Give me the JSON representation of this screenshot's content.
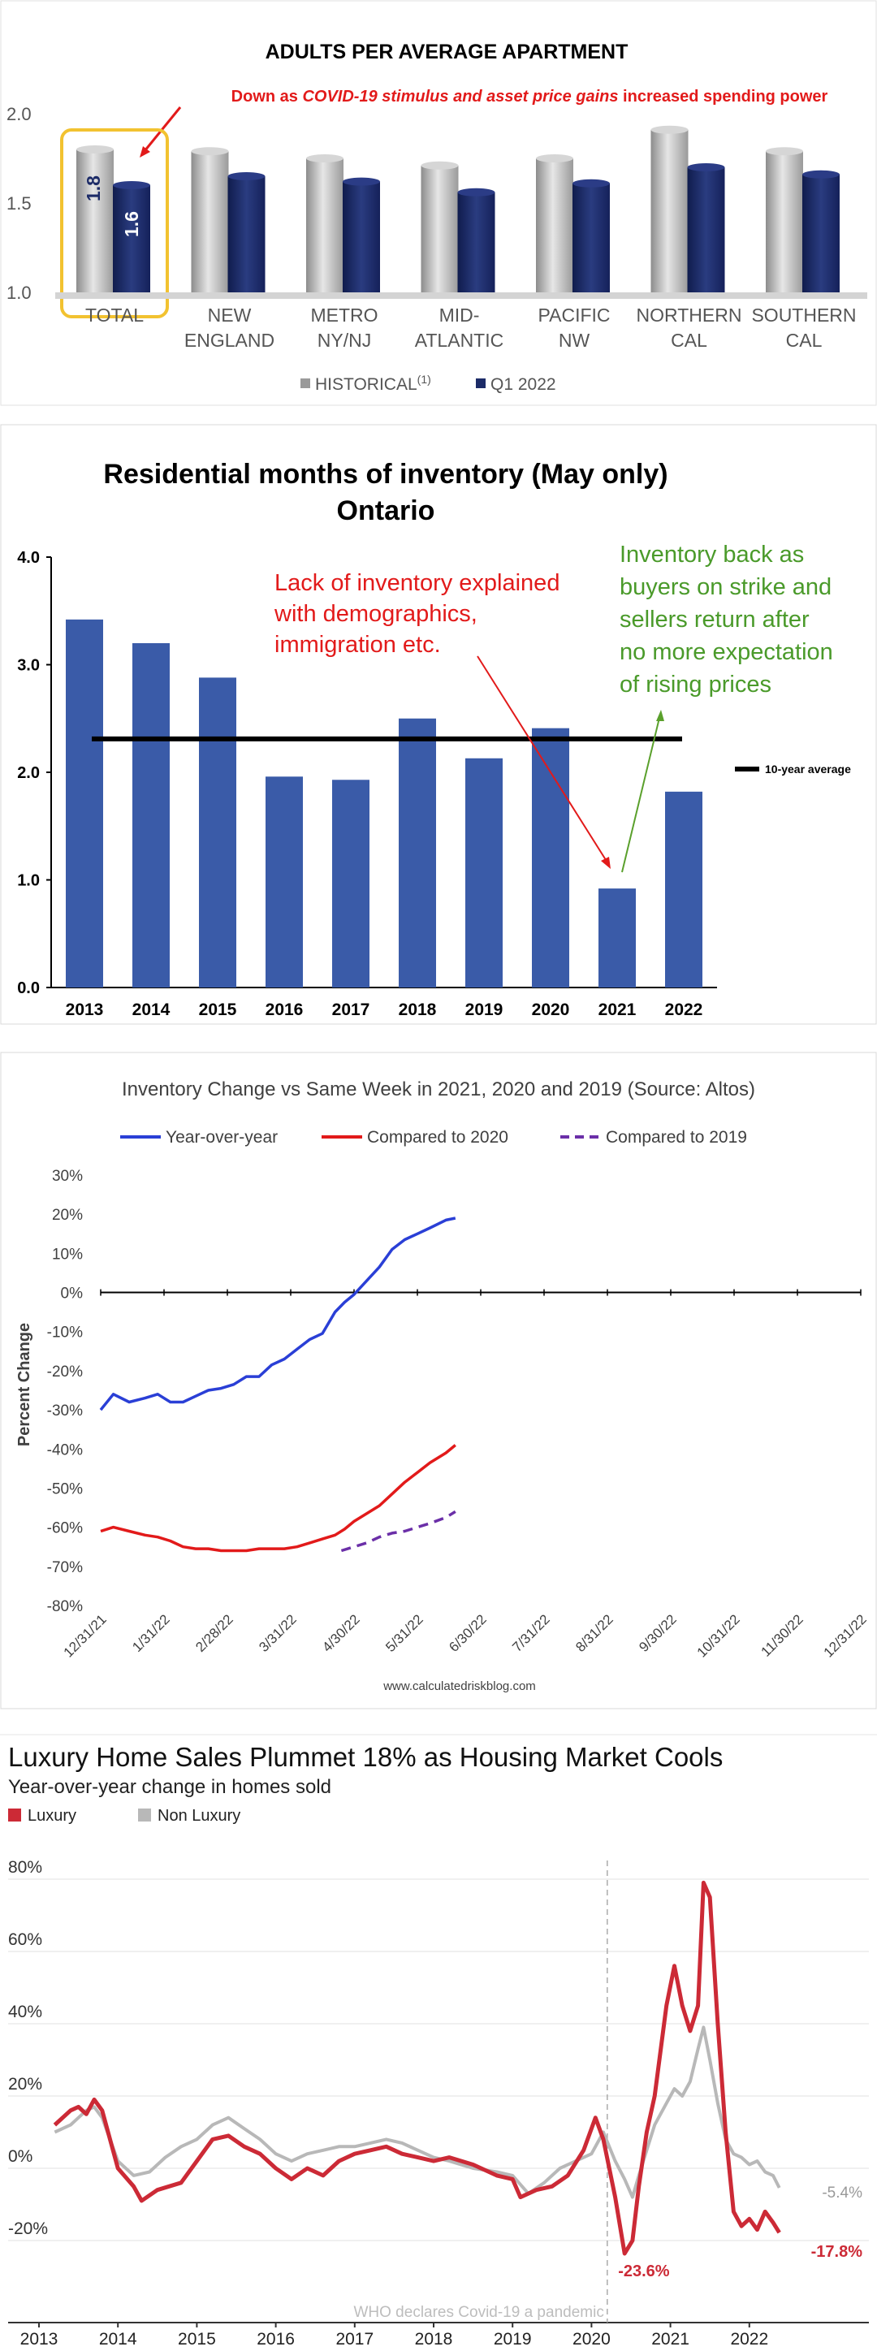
{
  "apartment": {
    "chart_data": {
      "type": "bar",
      "title": "ADULTS PER AVERAGE APARTMENT",
      "annotation": {
        "prefix": "Down as ",
        "emphasis": "COVID-19 stimulus and asset price gains",
        "suffix": " increased spending power"
      },
      "categories": [
        [
          "TOTAL"
        ],
        [
          "NEW",
          "ENGLAND"
        ],
        [
          "METRO",
          "NY/NJ"
        ],
        [
          "MID-",
          "ATLANTIC"
        ],
        [
          "PACIFIC",
          "NW"
        ],
        [
          "NORTHERN",
          "CAL"
        ],
        [
          "SOUTHERN",
          "CAL"
        ]
      ],
      "series": [
        {
          "name": "HISTORICAL",
          "values": [
            1.8,
            1.79,
            1.75,
            1.71,
            1.75,
            1.91,
            1.79
          ],
          "color": "#b3b3b3"
        },
        {
          "name": "Q1 2022",
          "values": [
            1.6,
            1.65,
            1.62,
            1.56,
            1.61,
            1.7,
            1.66
          ],
          "color": "#1c2b67"
        }
      ],
      "data_labels": [
        "1.8",
        "1.6"
      ],
      "legend": {
        "series1": "HISTORICAL",
        "superscript": "(1)",
        "series2": "Q1 2022",
        "position": "bottom"
      },
      "y_ticks": [
        "1.0",
        "1.5",
        "2.0"
      ],
      "ylim": [
        1.0,
        2.1
      ],
      "highlight_category": "TOTAL"
    }
  },
  "inventory": {
    "chart_data": {
      "type": "bar",
      "title": "Residential months of inventory (May only)",
      "subtitle": "Ontario",
      "categories": [
        "2013",
        "2014",
        "2015",
        "2016",
        "2017",
        "2018",
        "2019",
        "2020",
        "2021",
        "2022"
      ],
      "values": [
        3.42,
        3.2,
        2.88,
        1.96,
        1.93,
        2.5,
        2.13,
        2.41,
        0.92,
        1.82
      ],
      "average": 2.31,
      "average_label": "10-year average",
      "y_ticks": [
        "0.0",
        "1.0",
        "2.0",
        "3.0",
        "4.0"
      ],
      "ylim": [
        0,
        4
      ],
      "bar_color": "#3a5ba8",
      "annotation_red": [
        "Lack of inventory explained",
        "with demographics,",
        "immigration etc."
      ],
      "annotation_green": [
        "Inventory back as",
        "buyers on strike and",
        "sellers return after",
        "no more expectation",
        "of rising prices"
      ]
    }
  },
  "altos": {
    "chart_data": {
      "type": "line",
      "title": "Inventory Change vs Same Week in 2021, 2020 and 2019 (Source: Altos)",
      "ylabel": "Percent Change",
      "source": "www.calculatedriskblog.com",
      "x_ticks": [
        "12/31/21",
        "1/31/22",
        "2/28/22",
        "3/31/22",
        "4/30/22",
        "5/31/22",
        "6/30/22",
        "7/31/22",
        "8/31/22",
        "9/30/22",
        "10/31/22",
        "11/30/22",
        "12/31/22"
      ],
      "y_ticks": [
        "30%",
        "20%",
        "10%",
        "0%",
        "-10%",
        "-20%",
        "-30%",
        "-40%",
        "-50%",
        "-60%",
        "-70%",
        "-80%"
      ],
      "ylim": [
        -80,
        30
      ],
      "series": [
        {
          "name": "Year-over-year",
          "color": "#2a3fd6",
          "dash": false,
          "x": [
            0,
            0.2,
            0.45,
            0.7,
            0.9,
            1.1,
            1.3,
            1.5,
            1.7,
            1.9,
            2.1,
            2.3,
            2.5,
            2.7,
            2.9,
            3.1,
            3.3,
            3.5,
            3.7,
            3.85,
            4.0,
            4.2,
            4.4,
            4.6,
            4.8,
            5.0,
            5.2,
            5.45,
            5.6
          ],
          "y": [
            -30,
            -26,
            -28,
            -27,
            -26,
            -28,
            -28,
            -26.5,
            -25,
            -24.5,
            -23.5,
            -21.5,
            -21.5,
            -18.5,
            -17,
            -14.5,
            -12,
            -10.5,
            -5,
            -2.5,
            -0.5,
            3,
            6.5,
            11,
            13.5,
            15,
            16.5,
            18.5,
            19
          ]
        },
        {
          "name": "Compared to 2020",
          "color": "#e21a1a",
          "dash": false,
          "x": [
            0,
            0.2,
            0.45,
            0.7,
            0.9,
            1.1,
            1.3,
            1.5,
            1.7,
            1.9,
            2.1,
            2.3,
            2.5,
            2.7,
            2.9,
            3.1,
            3.3,
            3.5,
            3.7,
            3.85,
            4.0,
            4.2,
            4.4,
            4.6,
            4.8,
            5.0,
            5.2,
            5.45,
            5.6
          ],
          "y": [
            -61,
            -60,
            -61,
            -62,
            -62.5,
            -63.5,
            -65,
            -65.5,
            -65.5,
            -66,
            -66,
            -66,
            -65.5,
            -65.5,
            -65.5,
            -65,
            -64,
            -63,
            -62,
            -60.5,
            -58.5,
            -56.5,
            -54.5,
            -51.5,
            -48.5,
            -46,
            -43.5,
            -41,
            -39
          ]
        },
        {
          "name": "Compared to 2019",
          "color": "#6b2fa8",
          "dash": true,
          "x": [
            3.8,
            4.0,
            4.2,
            4.4,
            4.6,
            4.8,
            5.0,
            5.2,
            5.45,
            5.6
          ],
          "y": [
            -66,
            -65,
            -64,
            -62.5,
            -61.5,
            -61,
            -60,
            -59,
            -57.5,
            -56
          ]
        }
      ]
    }
  },
  "luxury": {
    "chart_data": {
      "type": "line",
      "title": "Luxury Home Sales Plummet 18% as Housing Market Cools",
      "subtitle": "Year-over-year change in homes sold",
      "x_ticks": [
        "2013",
        "2014",
        "2015",
        "2016",
        "2017",
        "2018",
        "2019",
        "2020",
        "2021",
        "2022"
      ],
      "y_ticks": [
        "80%",
        "60%",
        "40%",
        "20%",
        "0%",
        "-20%"
      ],
      "ylim": [
        -27,
        86
      ],
      "vline_x": 2020.2,
      "vline_label": "WHO declares Covid-19 a pandemic",
      "end_labels": {
        "non_luxury": "-5.4%",
        "luxury": "-17.8%",
        "dip": "-23.6%"
      },
      "series": [
        {
          "name": "Luxury",
          "color": "#cc2a36",
          "x": [
            2013.2,
            2013.4,
            2013.5,
            2013.6,
            2013.7,
            2013.8,
            2014.0,
            2014.2,
            2014.3,
            2014.5,
            2014.8,
            2015.0,
            2015.2,
            2015.4,
            2015.6,
            2015.8,
            2016.0,
            2016.2,
            2016.4,
            2016.6,
            2016.8,
            2017.0,
            2017.2,
            2017.4,
            2017.6,
            2017.8,
            2018.0,
            2018.2,
            2018.5,
            2018.8,
            2019.0,
            2019.1,
            2019.3,
            2019.5,
            2019.7,
            2019.9,
            2020.05,
            2020.15,
            2020.3,
            2020.42,
            2020.52,
            2020.6,
            2020.7,
            2020.8,
            2020.95,
            2021.05,
            2021.15,
            2021.25,
            2021.35,
            2021.42,
            2021.5,
            2021.6,
            2021.7,
            2021.8,
            2021.9,
            2022.0,
            2022.1,
            2022.2,
            2022.3,
            2022.38
          ],
          "y": [
            12,
            16,
            17,
            15,
            19,
            16,
            0,
            -5,
            -9,
            -6,
            -4,
            2,
            8,
            9,
            6,
            4,
            0,
            -3,
            0,
            -2,
            2,
            4,
            5,
            6,
            4,
            3,
            2,
            3,
            1,
            -2,
            -3,
            -8,
            -6,
            -5,
            -2,
            5,
            14,
            8,
            -8,
            -23.6,
            -20,
            -5,
            10,
            20,
            45,
            56,
            45,
            38,
            45,
            79,
            75,
            40,
            10,
            -12,
            -16,
            -14,
            -17,
            -12,
            -15,
            -17.8
          ]
        },
        {
          "name": "Non Luxury",
          "color": "#b8b8b8",
          "x": [
            2013.2,
            2013.4,
            2013.5,
            2013.6,
            2013.7,
            2013.8,
            2014.0,
            2014.2,
            2014.4,
            2014.6,
            2014.8,
            2015.0,
            2015.2,
            2015.4,
            2015.6,
            2015.8,
            2016.0,
            2016.2,
            2016.4,
            2016.6,
            2016.8,
            2017.0,
            2017.2,
            2017.4,
            2017.6,
            2017.8,
            2018.0,
            2018.2,
            2018.5,
            2018.8,
            2019.0,
            2019.2,
            2019.4,
            2019.6,
            2019.8,
            2020.0,
            2020.15,
            2020.3,
            2020.42,
            2020.52,
            2020.6,
            2020.7,
            2020.8,
            2020.95,
            2021.05,
            2021.15,
            2021.25,
            2021.35,
            2021.42,
            2021.5,
            2021.6,
            2021.7,
            2021.8,
            2021.9,
            2022.0,
            2022.1,
            2022.2,
            2022.3,
            2022.38
          ],
          "y": [
            10,
            12,
            14,
            16,
            17,
            14,
            2,
            -2,
            -1,
            3,
            6,
            8,
            12,
            14,
            11,
            8,
            4,
            2,
            4,
            5,
            6,
            6,
            7,
            8,
            7,
            5,
            3,
            2,
            0,
            -1,
            -2,
            -7,
            -4,
            0,
            2,
            4,
            10,
            2,
            -3,
            -8,
            -2,
            5,
            12,
            18,
            22,
            20,
            24,
            33,
            39,
            30,
            18,
            8,
            4,
            3,
            1,
            2,
            -1,
            -2,
            -5.4
          ]
        }
      ],
      "legend": [
        "Luxury",
        "Non Luxury"
      ]
    }
  }
}
